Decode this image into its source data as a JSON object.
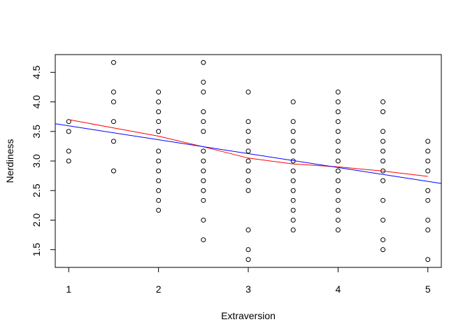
{
  "chart_data": {
    "type": "scatter",
    "title": "",
    "xlabel": "Extraversion",
    "ylabel": "Nerdiness",
    "xlim": [
      0.85,
      5.15
    ],
    "ylim": [
      1.2,
      4.8
    ],
    "x_ticks": [
      1,
      2,
      3,
      4,
      5
    ],
    "y_ticks": [
      1.5,
      2.0,
      2.5,
      3.0,
      3.5,
      4.0,
      4.5
    ],
    "x_tick_labels": [
      "1",
      "2",
      "3",
      "4",
      "5"
    ],
    "y_tick_labels": [
      "1.5",
      "2.0",
      "2.5",
      "3.0",
      "3.5",
      "4.0",
      "4.5"
    ],
    "grid": false,
    "points": [
      {
        "x": 1,
        "y": 3.667
      },
      {
        "x": 1,
        "y": 3.5
      },
      {
        "x": 1,
        "y": 3.167
      },
      {
        "x": 1,
        "y": 3.0
      },
      {
        "x": 1.5,
        "y": 4.667
      },
      {
        "x": 1.5,
        "y": 4.167
      },
      {
        "x": 1.5,
        "y": 4.0
      },
      {
        "x": 1.5,
        "y": 3.667
      },
      {
        "x": 1.5,
        "y": 3.333
      },
      {
        "x": 1.5,
        "y": 2.833
      },
      {
        "x": 2,
        "y": 4.167
      },
      {
        "x": 2,
        "y": 4.0
      },
      {
        "x": 2,
        "y": 3.833
      },
      {
        "x": 2,
        "y": 3.667
      },
      {
        "x": 2,
        "y": 3.5
      },
      {
        "x": 2,
        "y": 3.167
      },
      {
        "x": 2,
        "y": 3.0
      },
      {
        "x": 2,
        "y": 2.833
      },
      {
        "x": 2,
        "y": 2.667
      },
      {
        "x": 2,
        "y": 2.5
      },
      {
        "x": 2,
        "y": 2.333
      },
      {
        "x": 2,
        "y": 2.167
      },
      {
        "x": 2.5,
        "y": 4.667
      },
      {
        "x": 2.5,
        "y": 4.333
      },
      {
        "x": 2.5,
        "y": 4.167
      },
      {
        "x": 2.5,
        "y": 3.833
      },
      {
        "x": 2.5,
        "y": 3.667
      },
      {
        "x": 2.5,
        "y": 3.5
      },
      {
        "x": 2.5,
        "y": 3.167
      },
      {
        "x": 2.5,
        "y": 3.0
      },
      {
        "x": 2.5,
        "y": 2.833
      },
      {
        "x": 2.5,
        "y": 2.667
      },
      {
        "x": 2.5,
        "y": 2.5
      },
      {
        "x": 2.5,
        "y": 2.333
      },
      {
        "x": 2.5,
        "y": 2.0
      },
      {
        "x": 2.5,
        "y": 1.667
      },
      {
        "x": 3,
        "y": 4.167
      },
      {
        "x": 3,
        "y": 3.667
      },
      {
        "x": 3,
        "y": 3.5
      },
      {
        "x": 3,
        "y": 3.333
      },
      {
        "x": 3,
        "y": 3.167
      },
      {
        "x": 3,
        "y": 3.0
      },
      {
        "x": 3,
        "y": 2.833
      },
      {
        "x": 3,
        "y": 2.667
      },
      {
        "x": 3,
        "y": 2.5
      },
      {
        "x": 3,
        "y": 1.833
      },
      {
        "x": 3,
        "y": 1.5
      },
      {
        "x": 3,
        "y": 1.333
      },
      {
        "x": 3.5,
        "y": 4.0
      },
      {
        "x": 3.5,
        "y": 3.667
      },
      {
        "x": 3.5,
        "y": 3.5
      },
      {
        "x": 3.5,
        "y": 3.333
      },
      {
        "x": 3.5,
        "y": 3.167
      },
      {
        "x": 3.5,
        "y": 3.0
      },
      {
        "x": 3.5,
        "y": 2.833
      },
      {
        "x": 3.5,
        "y": 2.667
      },
      {
        "x": 3.5,
        "y": 2.5
      },
      {
        "x": 3.5,
        "y": 2.333
      },
      {
        "x": 3.5,
        "y": 2.167
      },
      {
        "x": 3.5,
        "y": 2.0
      },
      {
        "x": 3.5,
        "y": 1.833
      },
      {
        "x": 4,
        "y": 4.167
      },
      {
        "x": 4,
        "y": 4.0
      },
      {
        "x": 4,
        "y": 3.833
      },
      {
        "x": 4,
        "y": 3.667
      },
      {
        "x": 4,
        "y": 3.5
      },
      {
        "x": 4,
        "y": 3.333
      },
      {
        "x": 4,
        "y": 3.167
      },
      {
        "x": 4,
        "y": 3.0
      },
      {
        "x": 4,
        "y": 2.833
      },
      {
        "x": 4,
        "y": 2.667
      },
      {
        "x": 4,
        "y": 2.5
      },
      {
        "x": 4,
        "y": 2.333
      },
      {
        "x": 4,
        "y": 2.167
      },
      {
        "x": 4,
        "y": 2.0
      },
      {
        "x": 4,
        "y": 1.833
      },
      {
        "x": 4.5,
        "y": 4.0
      },
      {
        "x": 4.5,
        "y": 3.833
      },
      {
        "x": 4.5,
        "y": 3.5
      },
      {
        "x": 4.5,
        "y": 3.333
      },
      {
        "x": 4.5,
        "y": 3.167
      },
      {
        "x": 4.5,
        "y": 3.0
      },
      {
        "x": 4.5,
        "y": 2.833
      },
      {
        "x": 4.5,
        "y": 2.667
      },
      {
        "x": 4.5,
        "y": 2.333
      },
      {
        "x": 4.5,
        "y": 2.0
      },
      {
        "x": 4.5,
        "y": 1.667
      },
      {
        "x": 4.5,
        "y": 1.5
      },
      {
        "x": 5,
        "y": 3.333
      },
      {
        "x": 5,
        "y": 3.167
      },
      {
        "x": 5,
        "y": 3.0
      },
      {
        "x": 5,
        "y": 2.833
      },
      {
        "x": 5,
        "y": 2.5
      },
      {
        "x": 5,
        "y": 2.333
      },
      {
        "x": 5,
        "y": 2.0
      },
      {
        "x": 5,
        "y": 1.833
      },
      {
        "x": 5,
        "y": 1.333
      }
    ],
    "lines": [
      {
        "color": "#ff0000",
        "x": [
          1,
          1.5,
          2,
          2.5,
          3,
          3.5,
          4,
          4.5,
          5
        ],
        "y": [
          3.7,
          3.56,
          3.42,
          3.24,
          3.05,
          2.95,
          2.9,
          2.83,
          2.74
        ]
      },
      {
        "color": "#0000ff",
        "x": [
          0.85,
          5.15
        ],
        "y": [
          3.63,
          2.62
        ]
      }
    ]
  }
}
